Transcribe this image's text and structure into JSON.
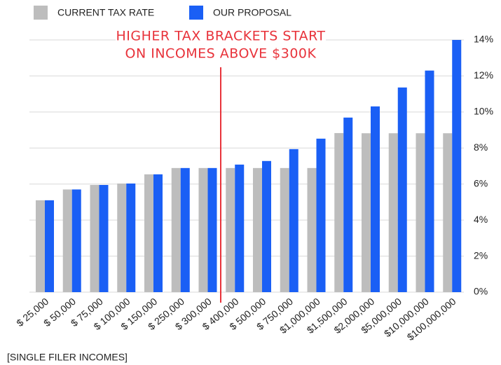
{
  "chart_data": {
    "type": "bar",
    "categories": [
      "$ 25,000",
      "$ 50,000",
      "$ 75,000",
      "$ 100,000",
      "$ 150,000",
      "$ 250,000",
      "$ 300,000",
      "$ 400,000",
      "$ 500,000",
      "$ 750,000",
      "$1,000,000",
      "$1,500,000",
      "$2,000,000",
      "$5,000,000",
      "$10,000,000",
      "$100,000,000"
    ],
    "series": [
      {
        "name": "CURRENT TAX RATE",
        "color": "#bdbdbd",
        "values": [
          5.1,
          5.7,
          5.95,
          6.03,
          6.54,
          6.89,
          6.89,
          6.89,
          6.89,
          6.89,
          6.89,
          8.83,
          8.82,
          8.82,
          8.82,
          8.82
        ]
      },
      {
        "name": "OUR PROPOSAL",
        "color": "#1a5ff5",
        "values": [
          5.1,
          5.7,
          5.95,
          6.03,
          6.54,
          6.89,
          6.89,
          7.08,
          7.28,
          7.94,
          8.52,
          9.69,
          10.31,
          11.36,
          12.3,
          14.0
        ]
      }
    ],
    "ylim": [
      0,
      14
    ],
    "yticks": [
      {
        "value": 0,
        "label": "0%"
      },
      {
        "value": 2,
        "label": "2%"
      },
      {
        "value": 4,
        "label": "4%"
      },
      {
        "value": 6,
        "label": "6%"
      },
      {
        "value": 8,
        "label": "8%"
      },
      {
        "value": 10,
        "label": "10%"
      },
      {
        "value": 12,
        "label": "12%"
      },
      {
        "value": 14,
        "label": "14%"
      }
    ],
    "grid": true,
    "annotation": [
      "HIGHER TAX BRACKETS START",
      "ON INCOMES ABOVE $300K"
    ],
    "xlabel": "[SINGLE FILER INCOMES]"
  }
}
